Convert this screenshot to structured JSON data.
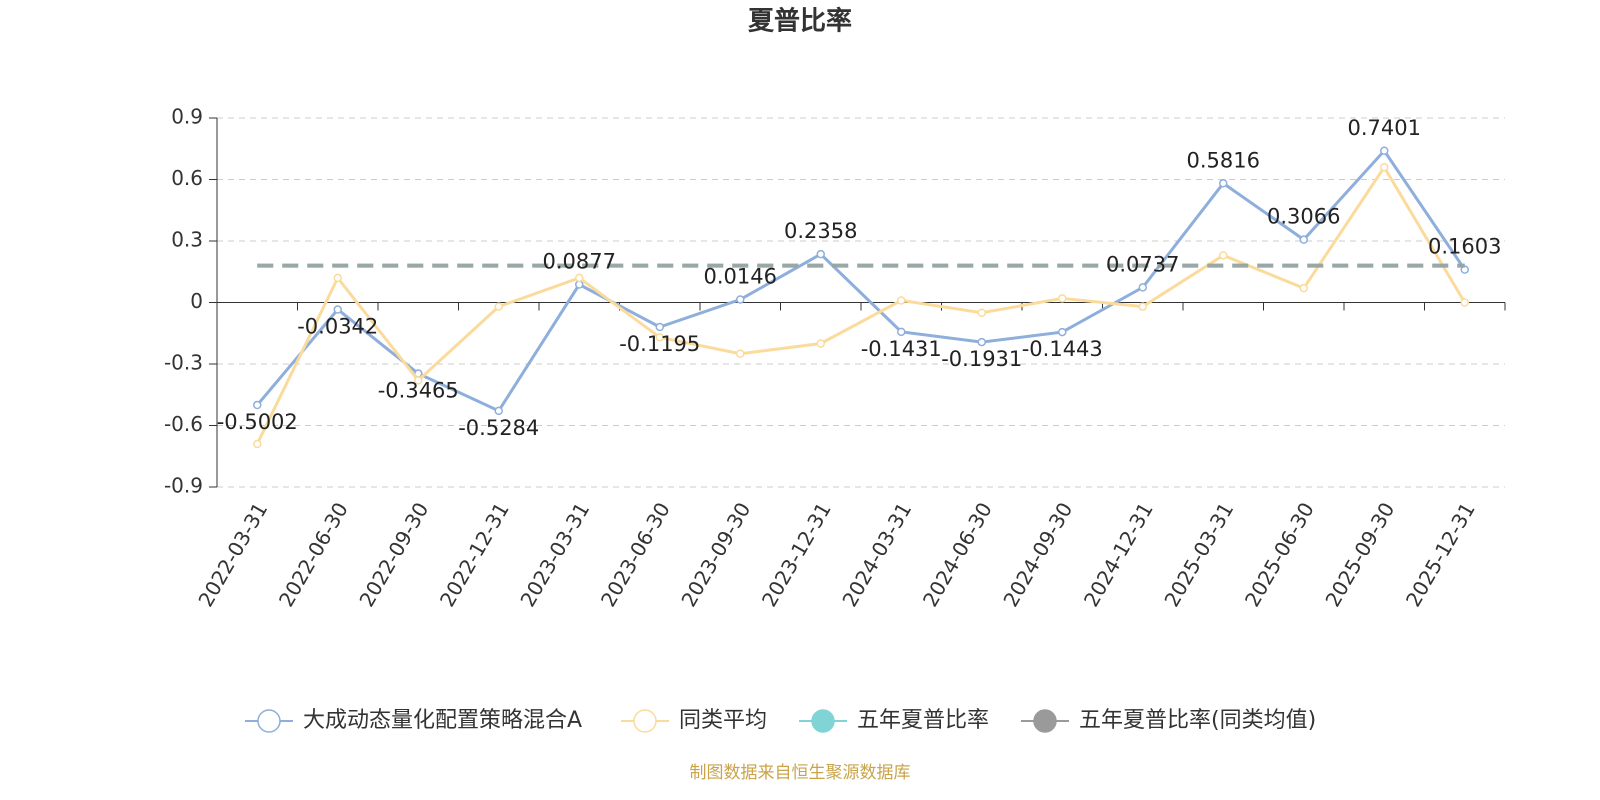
{
  "chart_data": {
    "type": "line",
    "title": "夏普比率",
    "categories": [
      "2022-03-31",
      "2022-06-30",
      "2022-09-30",
      "2022-12-31",
      "2023-03-31",
      "2023-06-30",
      "2023-09-30",
      "2023-12-31",
      "2024-03-31",
      "2024-06-30",
      "2024-09-30",
      "2024-12-31",
      "2025-03-31",
      "2025-06-30",
      "2025-09-30",
      "2025-12-31"
    ],
    "series": [
      {
        "name": "大成动态量化配置策略混合A",
        "color": "#8eaedb",
        "data_labels": true,
        "values": [
          -0.5002,
          -0.0342,
          -0.3465,
          -0.5284,
          0.0877,
          -0.1195,
          0.0146,
          0.2358,
          -0.1431,
          -0.1931,
          -0.1443,
          0.0737,
          0.5816,
          0.3066,
          0.7401,
          0.1603
        ]
      },
      {
        "name": "同类平均",
        "color": "#fbdb9c",
        "values": [
          -0.69,
          0.12,
          -0.38,
          -0.02,
          0.12,
          -0.17,
          -0.25,
          -0.2,
          0.01,
          -0.05,
          0.02,
          -0.02,
          0.23,
          0.07,
          0.66,
          0.0
        ]
      },
      {
        "name": "五年夏普比率",
        "color": "#80d4d6",
        "value": 0.18,
        "dashed": true
      },
      {
        "name": "五年夏普比率(同类均值)",
        "color": "#9a9a9a",
        "value": 0.18,
        "dashed": true
      }
    ],
    "ylim": [
      -0.9,
      0.9
    ],
    "yticks": [
      0.9,
      0.6,
      0.3,
      0,
      -0.3,
      -0.6,
      -0.9
    ],
    "grid": true,
    "legend": "bottom",
    "source": "制图数据来自恒生聚源数据库"
  }
}
